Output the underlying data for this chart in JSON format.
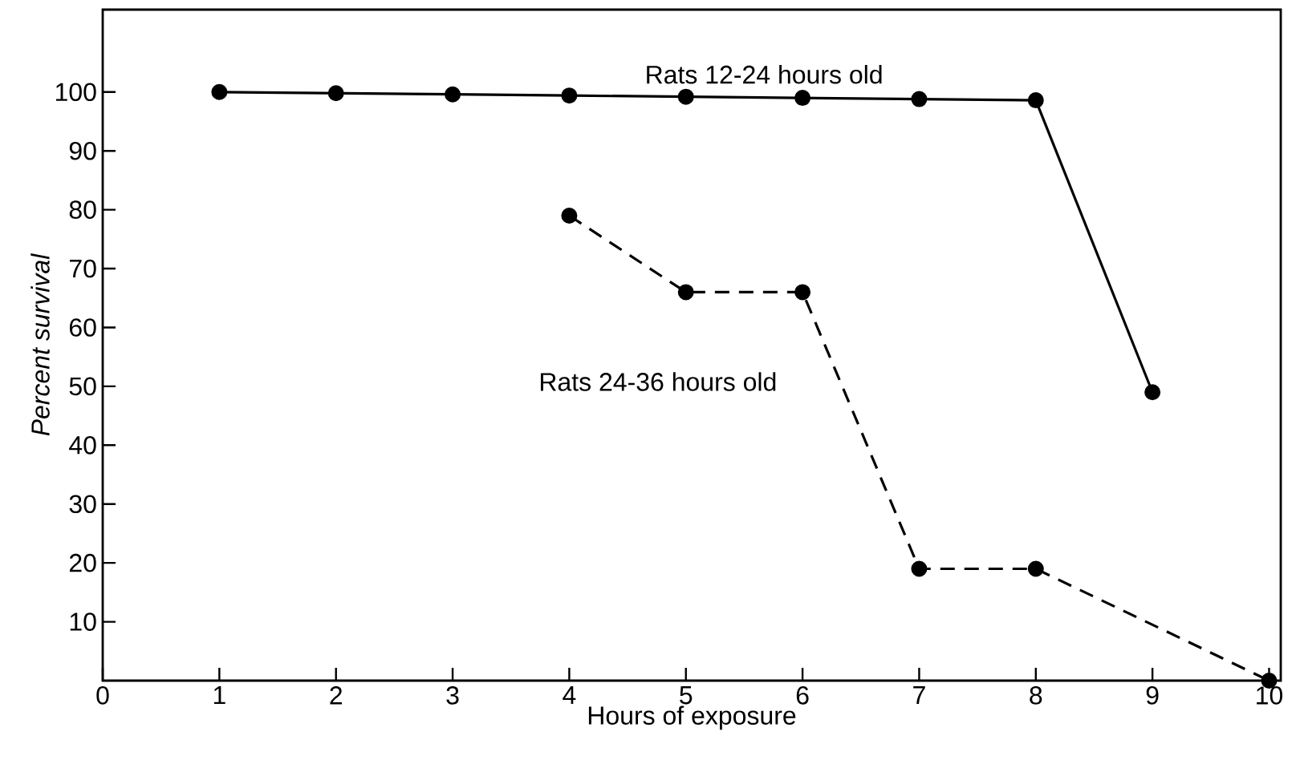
{
  "chart_data": {
    "type": "line",
    "xlabel": "Hours of exposure",
    "ylabel": "Percent survival",
    "series": [
      {
        "name": "Rats 12-24 hours old",
        "color": "#000000",
        "line_style": "solid",
        "x": [
          1,
          2,
          3,
          4,
          5,
          6,
          7,
          8,
          9
        ],
        "values": [
          100,
          99.8,
          99.6,
          99.4,
          99.2,
          99,
          98.8,
          98.6,
          49
        ]
      },
      {
        "name": "Rats 24-36 hours old",
        "color": "#000000",
        "line_style": "dashed",
        "x": [
          4,
          5,
          6,
          7,
          8,
          10
        ],
        "values": [
          79,
          66,
          66,
          19,
          19,
          0
        ]
      }
    ],
    "xlim": [
      0,
      10.1
    ],
    "ylim": [
      0,
      114
    ],
    "xticks": [
      0,
      1,
      2,
      3,
      4,
      5,
      6,
      7,
      8,
      9,
      10
    ],
    "yticks": [
      10,
      20,
      30,
      40,
      50,
      60,
      70,
      80,
      90,
      100
    ],
    "marker": "circle",
    "grid": false
  }
}
